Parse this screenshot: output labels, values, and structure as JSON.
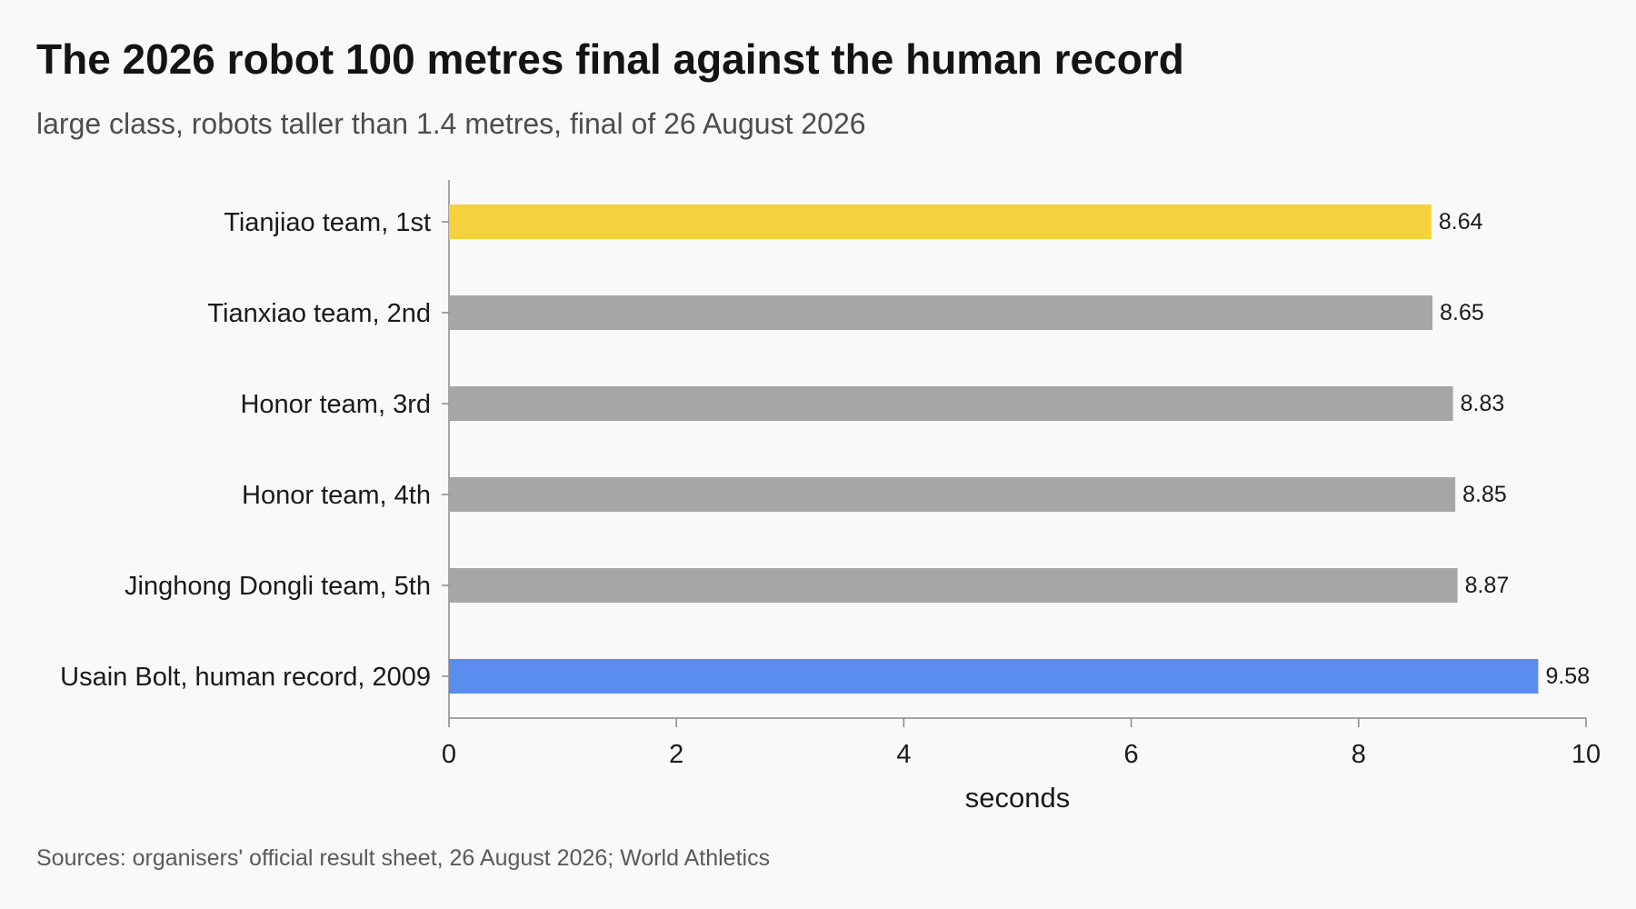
{
  "title": "The 2026 robot 100 metres final against the human record",
  "subtitle": "large class, robots taller than 1.4 metres, final of 26 August 2026",
  "source": "Sources: organisers' official result sheet, 26 August 2026; World Athletics",
  "colors": {
    "winner": "#f4d13d",
    "other_robots": "#a6a6a6",
    "human_record": "#5b8def",
    "axis": "#888888",
    "background": "#f9f9f9"
  },
  "chart_data": {
    "type": "bar",
    "orientation": "horizontal",
    "categories": [
      "Tianjiao team, 1st",
      "Tianxiao team, 2nd",
      "Honor team, 3rd",
      "Honor team, 4th",
      "Jinghong Dongli team, 5th",
      "Usain Bolt, human record, 2009"
    ],
    "values": [
      8.64,
      8.65,
      8.83,
      8.85,
      8.87,
      9.58
    ],
    "value_labels": [
      "8.64",
      "8.65",
      "8.83",
      "8.85",
      "8.87",
      "9.58"
    ],
    "bar_colors": [
      "#f4d13d",
      "#a6a6a6",
      "#a6a6a6",
      "#a6a6a6",
      "#a6a6a6",
      "#5b8def"
    ],
    "xlabel": "seconds",
    "ylabel": "",
    "xlim": [
      0,
      10
    ],
    "xticks": [
      0,
      2,
      4,
      6,
      8,
      10
    ],
    "xtick_labels": [
      "0",
      "2",
      "4",
      "6",
      "8",
      "10"
    ],
    "grid": false,
    "legend": false
  }
}
